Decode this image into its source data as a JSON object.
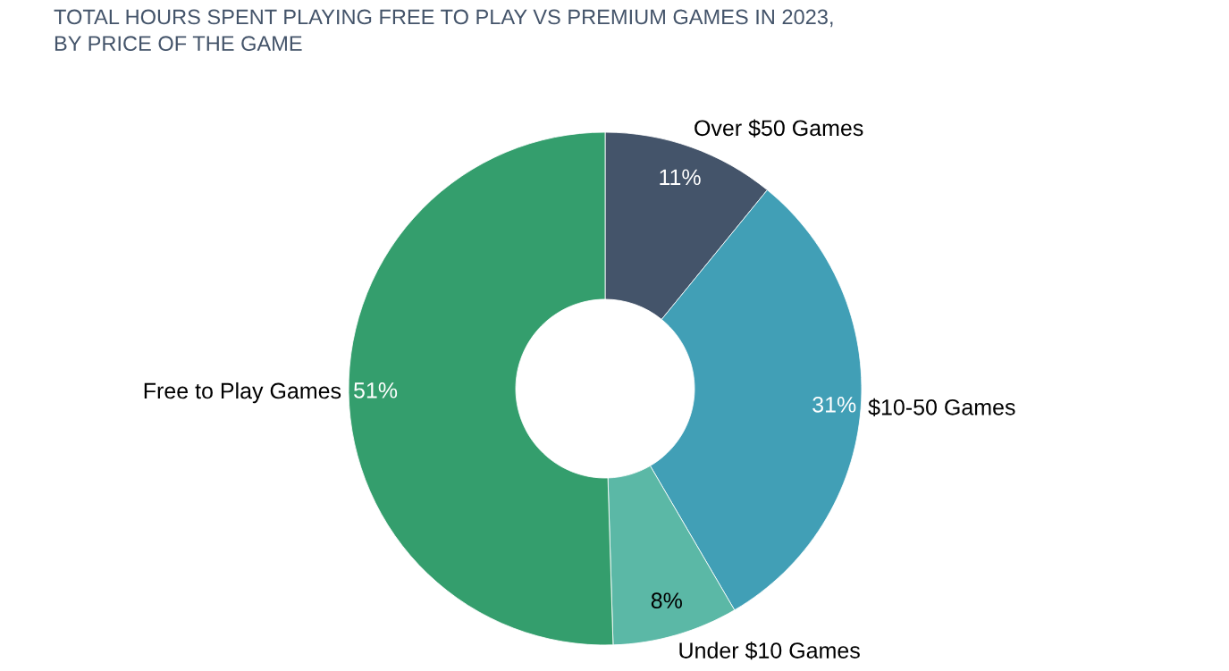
{
  "chart_data": {
    "type": "donut",
    "title": "TOTAL HOURS SPENT PLAYING FREE TO PLAY VS PREMIUM GAMES IN 2023,\nBY PRICE OF THE GAME",
    "categories": [
      "Over $50 Games",
      "$10-50 Games",
      "Under $10 Games",
      "Free to Play Games"
    ],
    "values": [
      11,
      31,
      8,
      51
    ],
    "value_labels": [
      "11%",
      "31%",
      "8%",
      "51%"
    ],
    "colors": [
      "#44546a",
      "#419fb6",
      "#5bb8a6",
      "#349e6d"
    ]
  }
}
